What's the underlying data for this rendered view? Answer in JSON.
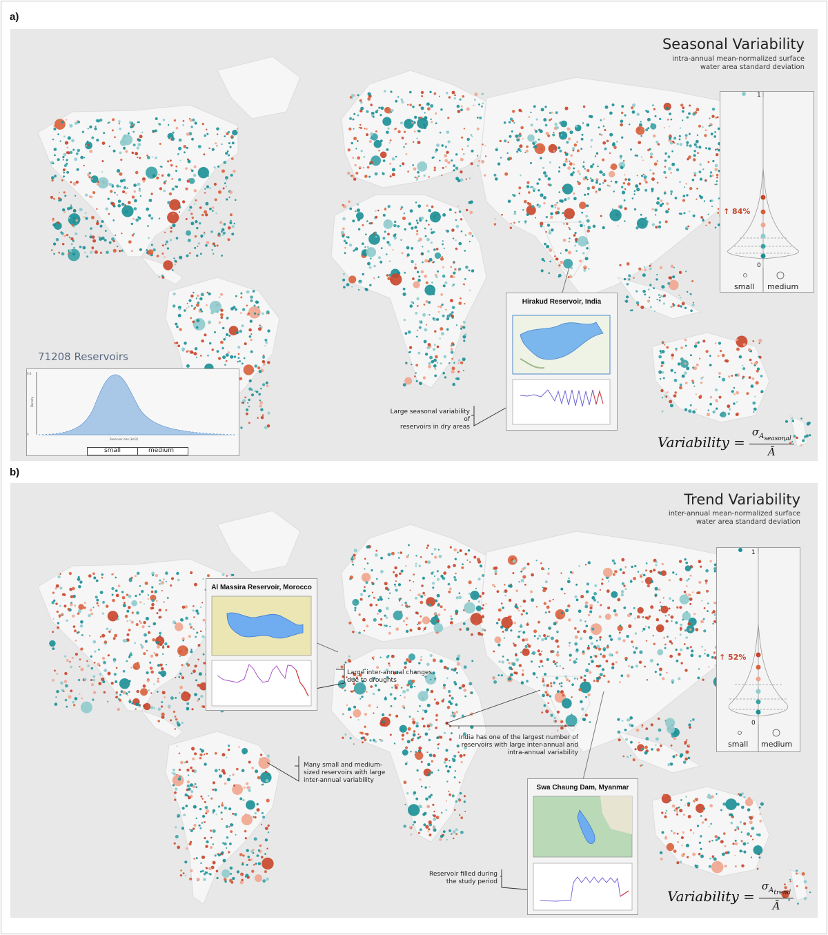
{
  "panel_a": {
    "letter": "a)",
    "title": "Seasonal Variability",
    "subtitle_line1": "intra-annual mean-normalized surface",
    "subtitle_line2": "water area standard deviation",
    "formula_lhs": "Variability =",
    "formula_num": "σ",
    "formula_sub": "A",
    "formula_subsub": "seasonal",
    "formula_den": "Ā",
    "violin": {
      "top_label": "1",
      "bottom_label": "0",
      "pct": "↑ 84%",
      "small_label": "small",
      "medium_label": "medium"
    },
    "histogram": {
      "title": "71208 Reservoirs",
      "ylabel": "Density",
      "xlabel": "Reservoir size (km2)",
      "size_small": "small",
      "size_medium": "medium"
    },
    "inset": {
      "title": "Hirakud Reservoir, India",
      "annotation_line1": "Large seasonal variability of",
      "annotation_line2": "reservoirs in dry areas"
    }
  },
  "panel_b": {
    "letter": "b)",
    "title": "Trend Variability",
    "subtitle_line1": "inter-annual mean-normalized surface",
    "subtitle_line2": "water area standard deviation",
    "formula_lhs": "Variability =",
    "formula_num": "σ",
    "formula_sub": "A",
    "formula_subsub": "trend",
    "formula_den": "Ā",
    "violin": {
      "top_label": "1",
      "bottom_label": "0",
      "pct": "↑ 52%",
      "small_label": "small",
      "medium_label": "medium"
    },
    "inset_morocco": {
      "title": "Al Massira Reservoir, Morocco",
      "annotation_line1": "Large inter-annual changes",
      "annotation_line2": "due to droughts"
    },
    "inset_myanmar": {
      "title": "Swa Chaung Dam, Myanmar",
      "annotation_line1": "Reservoir filled during",
      "annotation_line2": "the study period"
    },
    "annot_brazil": {
      "line1": "Many small and medium-",
      "line2": "sized reservoirs with large",
      "line3": "inter-annual variability"
    },
    "annot_india": {
      "line1": "India has one of the largest number of",
      "line2": "reservoirs with large inter-annual and",
      "line3": "intra-annual variability"
    }
  },
  "colors": {
    "teal": "#1a8f96",
    "light_teal": "#8fcbcd",
    "orange": "#c8452a",
    "salmon": "#f0a58e",
    "land": "#f6f6f6",
    "ocean": "#e8e8e8"
  }
}
